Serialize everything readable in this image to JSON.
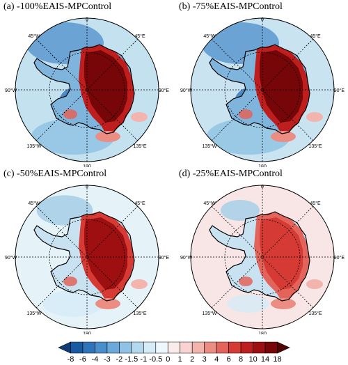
{
  "panels": [
    {
      "title": "(a) -100%EAIS-MPControl",
      "ice_anomaly": "strong",
      "labels": {
        "top": "0",
        "nw": "45°W",
        "ne": "45°E",
        "w": "90°W",
        "e": "90°E",
        "sw": "135°W",
        "se": "135°E",
        "bottom": "180"
      }
    },
    {
      "title": "(b) -75%EAIS-MPControl",
      "ice_anomaly": "strong",
      "labels": {
        "top": "0",
        "nw": "45°W",
        "ne": "45°E",
        "w": "90°W",
        "e": "90°E",
        "sw": "135°W",
        "se": "135°E",
        "bottom": "180"
      }
    },
    {
      "title": "(c) -50%EAIS-MPControl",
      "ice_anomaly": "medium",
      "labels": {
        "top": "0",
        "nw": "45°W",
        "ne": "45°E",
        "w": "90°W",
        "e": "90°E",
        "sw": "135°W",
        "se": "135°E",
        "bottom": "180"
      }
    },
    {
      "title": "(d) -25%EAIS-MPControl",
      "ice_anomaly": "weak",
      "labels": {
        "top": "0",
        "nw": "45°W",
        "ne": "45°E",
        "w": "90°W",
        "e": "90°E",
        "sw": "135°W",
        "se": "135°E",
        "bottom": "180"
      }
    }
  ],
  "colorbar": {
    "labels": [
      "-8",
      "-6",
      "-4",
      "-3",
      "-2",
      "-1.5",
      "-1",
      "-0.5",
      "0",
      "1",
      "2",
      "3",
      "4",
      "6",
      "8",
      "10",
      "14",
      "18"
    ],
    "colors": [
      "#0b3c7c",
      "#1a5aa0",
      "#2f74bb",
      "#4a8fcc",
      "#6aa9d9",
      "#8fc2e4",
      "#b4d8ee",
      "#d5ebf6",
      "#eef7fb",
      "#fbecec",
      "#f8d3d1",
      "#f3b4ae",
      "#ec8d83",
      "#e2645a",
      "#d53b34",
      "#bf1e1e",
      "#9e0f12",
      "#760608",
      "#520204"
    ]
  }
}
